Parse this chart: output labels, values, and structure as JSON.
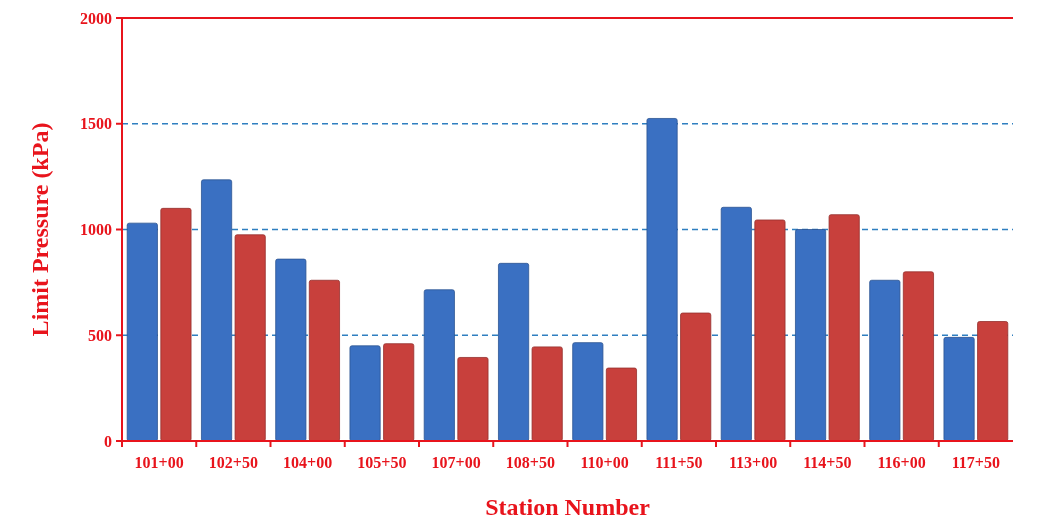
{
  "chart_data": {
    "type": "bar",
    "xlabel": "Station Number",
    "ylabel": "Limit Pressure (kPa)",
    "categories": [
      "101+00",
      "102+50",
      "104+00",
      "105+50",
      "107+00",
      "108+50",
      "110+00",
      "111+50",
      "113+00",
      "114+50",
      "116+00",
      "117+50"
    ],
    "series": [
      {
        "color": "#3a70c2",
        "values": [
          1030,
          1235,
          860,
          450,
          715,
          840,
          465,
          1525,
          1105,
          1000,
          760,
          490
        ]
      },
      {
        "color": "#c8403c",
        "values": [
          1100,
          975,
          760,
          460,
          395,
          445,
          345,
          605,
          1045,
          1070,
          800,
          565
        ]
      }
    ],
    "ylim": [
      0,
      2000
    ],
    "yticks": [
      0,
      500,
      1000,
      1500,
      2000
    ],
    "grid": "y"
  }
}
